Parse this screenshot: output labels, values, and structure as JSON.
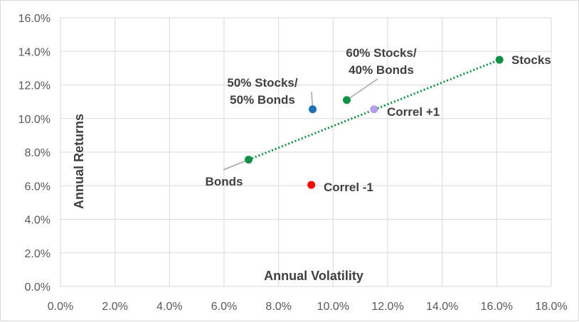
{
  "chart_data": {
    "type": "scatter",
    "title": "",
    "xlabel": "Annual Volatility",
    "ylabel": "Annual Returns",
    "xlim": [
      0,
      18
    ],
    "ylim": [
      0,
      16
    ],
    "x_ticks": [
      0,
      2,
      4,
      6,
      8,
      10,
      12,
      14,
      16,
      18
    ],
    "y_ticks": [
      0,
      2,
      4,
      6,
      8,
      10,
      12,
      14,
      16
    ],
    "x_tick_labels": [
      "0.0%",
      "2.0%",
      "4.0%",
      "6.0%",
      "8.0%",
      "10.0%",
      "12.0%",
      "14.0%",
      "16.0%",
      "18.0%"
    ],
    "y_tick_labels": [
      "0.0%",
      "2.0%",
      "4.0%",
      "6.0%",
      "8.0%",
      "10.0%",
      "12.0%",
      "14.0%",
      "16.0%"
    ],
    "grid": true,
    "points": [
      {
        "name": "Stocks",
        "label": "Stocks",
        "x": 16.1,
        "y": 13.5,
        "color": "#109146"
      },
      {
        "name": "Bonds",
        "label": "Bonds",
        "x": 6.9,
        "y": 7.55,
        "color": "#109146"
      },
      {
        "name": "60% Stocks/40% Bonds",
        "label": [
          "60% Stocks/",
          "40% Bonds"
        ],
        "x": 10.5,
        "y": 11.1,
        "color": "#109146"
      },
      {
        "name": "50% Stocks/50% Bonds",
        "label": [
          "50% Stocks/",
          "50% Bonds"
        ],
        "x": 9.25,
        "y": 10.55,
        "color": "#1f6fb5"
      },
      {
        "name": "Correl +1",
        "label": "Correl +1",
        "x": 11.5,
        "y": 10.55,
        "color": "#b79ce8"
      },
      {
        "name": "Correl -1",
        "label": "Correl -1",
        "x": 9.2,
        "y": 6.05,
        "color": "#ff0000"
      }
    ],
    "trendline": {
      "from": "Bonds",
      "to": "Stocks",
      "color": "#109146",
      "style": "dotted"
    }
  }
}
